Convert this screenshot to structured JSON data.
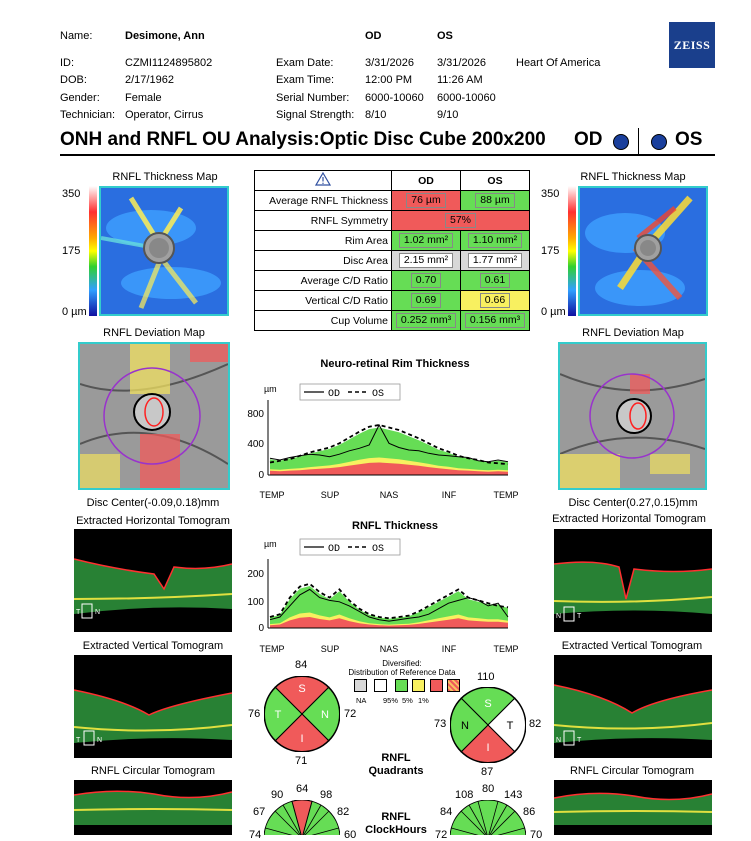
{
  "header": {
    "labels": {
      "name": "Name:",
      "id": "ID:",
      "dob": "DOB:",
      "gender": "Gender:",
      "technician": "Technician:",
      "exam_date": "Exam Date:",
      "exam_time": "Exam Time:",
      "serial_number": "Serial Number:",
      "signal_strength": "Signal Strength:"
    },
    "patient": {
      "name": "Desimone, Ann",
      "id": "CZMI1124895802",
      "dob": "2/17/1962",
      "gender": "Female",
      "technician": "Operator, Cirrus"
    },
    "od": {
      "col": "OD",
      "exam_date": "3/31/2026",
      "exam_time": "12:00 PM",
      "serial_number": "6000-10060",
      "signal_strength": "8/10"
    },
    "os": {
      "col": "OS",
      "exam_date": "3/31/2026",
      "exam_time": "11:26 AM",
      "serial_number": "6000-10060",
      "signal_strength": "9/10"
    },
    "practice": "Heart Of America",
    "logo": "ZEISS"
  },
  "title": {
    "main": "ONH and RNFL OU Analysis:Optic Disc Cube 200x200",
    "od": "OD",
    "os": "OS"
  },
  "table": {
    "col_od": "OD",
    "col_os": "OS",
    "rows": [
      {
        "label": "Average RNFL Thickness",
        "od": "76 µm",
        "os": "88 µm"
      },
      {
        "label": "RNFL Symmetry",
        "both": "57%"
      },
      {
        "label": "Rim Area",
        "od": "1.02 mm²",
        "os": "1.10 mm²"
      },
      {
        "label": "Disc Area",
        "od": "2.15 mm²",
        "os": "1.77 mm²"
      },
      {
        "label": "Average C/D Ratio",
        "od": "0.70",
        "os": "0.61"
      },
      {
        "label": "Vertical C/D Ratio",
        "od": "0.69",
        "os": "0.66"
      },
      {
        "label": "Cup Volume",
        "od": "0.252 mm³",
        "os": "0.156 mm³"
      }
    ]
  },
  "left": {
    "thickness_map_title": "RNFL Thickness Map",
    "scale_max": "350",
    "scale_mid": "175",
    "scale_min": "0 µm",
    "deviation_map_title": "RNFL Deviation Map",
    "disc_center": "Disc Center(-0.09,0.18)mm",
    "horizontal_tomogram": "Extracted Horizontal Tomogram",
    "vertical_tomogram": "Extracted Vertical Tomogram",
    "circular_tomogram": "RNFL Circular Tomogram"
  },
  "right": {
    "thickness_map_title": "RNFL Thickness Map",
    "scale_max": "350",
    "scale_mid": "175",
    "scale_min": "0 µm",
    "deviation_map_title": "RNFL Deviation Map",
    "disc_center": "Disc Center(0.27,0.15)mm",
    "horizontal_tomogram": "Extracted Horizontal Tomogram",
    "vertical_tomogram": "Extracted Vertical Tomogram",
    "circular_tomogram": "RNFL Circular Tomogram"
  },
  "rim_chart": {
    "title": "Neuro-retinal Rim Thickness",
    "unit": "µm",
    "legend_od": "OD",
    "legend_os": "OS",
    "y_ticks": [
      "800",
      "400",
      "0"
    ],
    "x_ticks": [
      "TEMP",
      "SUP",
      "NAS",
      "INF",
      "TEMP"
    ]
  },
  "rnfl_chart": {
    "title": "RNFL Thickness",
    "unit": "µm",
    "legend_od": "OD",
    "legend_os": "OS",
    "y_ticks": [
      "200",
      "100",
      "0"
    ],
    "x_ticks": [
      "TEMP",
      "SUP",
      "NAS",
      "INF",
      "TEMP"
    ]
  },
  "legend": {
    "title_line1": "Diversified:",
    "title_line2": "Distribution of Reference Data",
    "labels": [
      "NA",
      "95%",
      "5%",
      "1%"
    ]
  },
  "quadrants": {
    "title_line1": "RNFL",
    "title_line2": "Quadrants",
    "od": {
      "S": "84",
      "N": "72",
      "I": "71",
      "T": "76"
    },
    "os": {
      "S": "110",
      "N": "73",
      "I": "87",
      "T": "82"
    },
    "letters": {
      "S": "S",
      "T": "T",
      "N": "N",
      "I": "I"
    }
  },
  "clock_hours": {
    "title_line1": "RNFL",
    "title_line2": "ClockHours",
    "od_values": [
      "90",
      "64",
      "98",
      "67",
      "82",
      "74",
      "60"
    ],
    "os_values": [
      "108",
      "80",
      "143",
      "84",
      "86",
      "72",
      "70"
    ]
  },
  "colors": {
    "normal_green": "#66dd55",
    "borderline_yellow": "#f8f060",
    "abnormal_red": "#f05a5a",
    "na_grey": "#d8d8d8",
    "zeiss_blue": "#1a3f8c",
    "od_series": "#000000",
    "os_series": "#000000"
  },
  "chart_data": [
    {
      "type": "area",
      "title": "Neuro-retinal Rim Thickness",
      "ylabel": "µm",
      "ylim": [
        0,
        900
      ],
      "categories": [
        "TEMP",
        "SUP",
        "NAS",
        "INF",
        "TEMP"
      ],
      "x": [
        0,
        10,
        20,
        30,
        40,
        50,
        60,
        70,
        80,
        90,
        100,
        110,
        120,
        130,
        140,
        150,
        160,
        170,
        180,
        190,
        200,
        210,
        220,
        230,
        240
      ],
      "series": [
        {
          "name": "OD",
          "values": [
            200,
            180,
            210,
            230,
            250,
            240,
            220,
            250,
            290,
            320,
            360,
            600,
            380,
            330,
            300,
            290,
            260,
            240,
            230,
            220,
            210,
            170,
            160,
            180,
            160
          ]
        },
        {
          "name": "OS",
          "values": [
            150,
            170,
            190,
            230,
            270,
            300,
            330,
            380,
            450,
            520,
            580,
            600,
            570,
            540,
            490,
            440,
            380,
            320,
            280,
            230,
            200,
            180,
            150,
            140,
            130
          ]
        }
      ]
    },
    {
      "type": "area",
      "title": "RNFL Thickness",
      "ylabel": "µm",
      "ylim": [
        0,
        250
      ],
      "categories": [
        "TEMP",
        "SUP",
        "NAS",
        "INF",
        "TEMP"
      ],
      "x": [
        0,
        10,
        20,
        30,
        40,
        50,
        60,
        70,
        80,
        90,
        100,
        110,
        120,
        130,
        140,
        150,
        160,
        170,
        180,
        190,
        200,
        210,
        220,
        230,
        240
      ],
      "series": [
        {
          "name": "OD",
          "values": [
            30,
            40,
            80,
            120,
            140,
            110,
            100,
            95,
            80,
            60,
            40,
            30,
            25,
            30,
            35,
            40,
            50,
            70,
            90,
            100,
            110,
            100,
            80,
            90,
            40
          ]
        },
        {
          "name": "OS",
          "values": [
            40,
            50,
            110,
            150,
            160,
            130,
            110,
            140,
            100,
            70,
            50,
            40,
            35,
            40,
            45,
            60,
            80,
            100,
            120,
            140,
            110,
            100,
            90,
            80,
            75
          ]
        }
      ]
    }
  ]
}
